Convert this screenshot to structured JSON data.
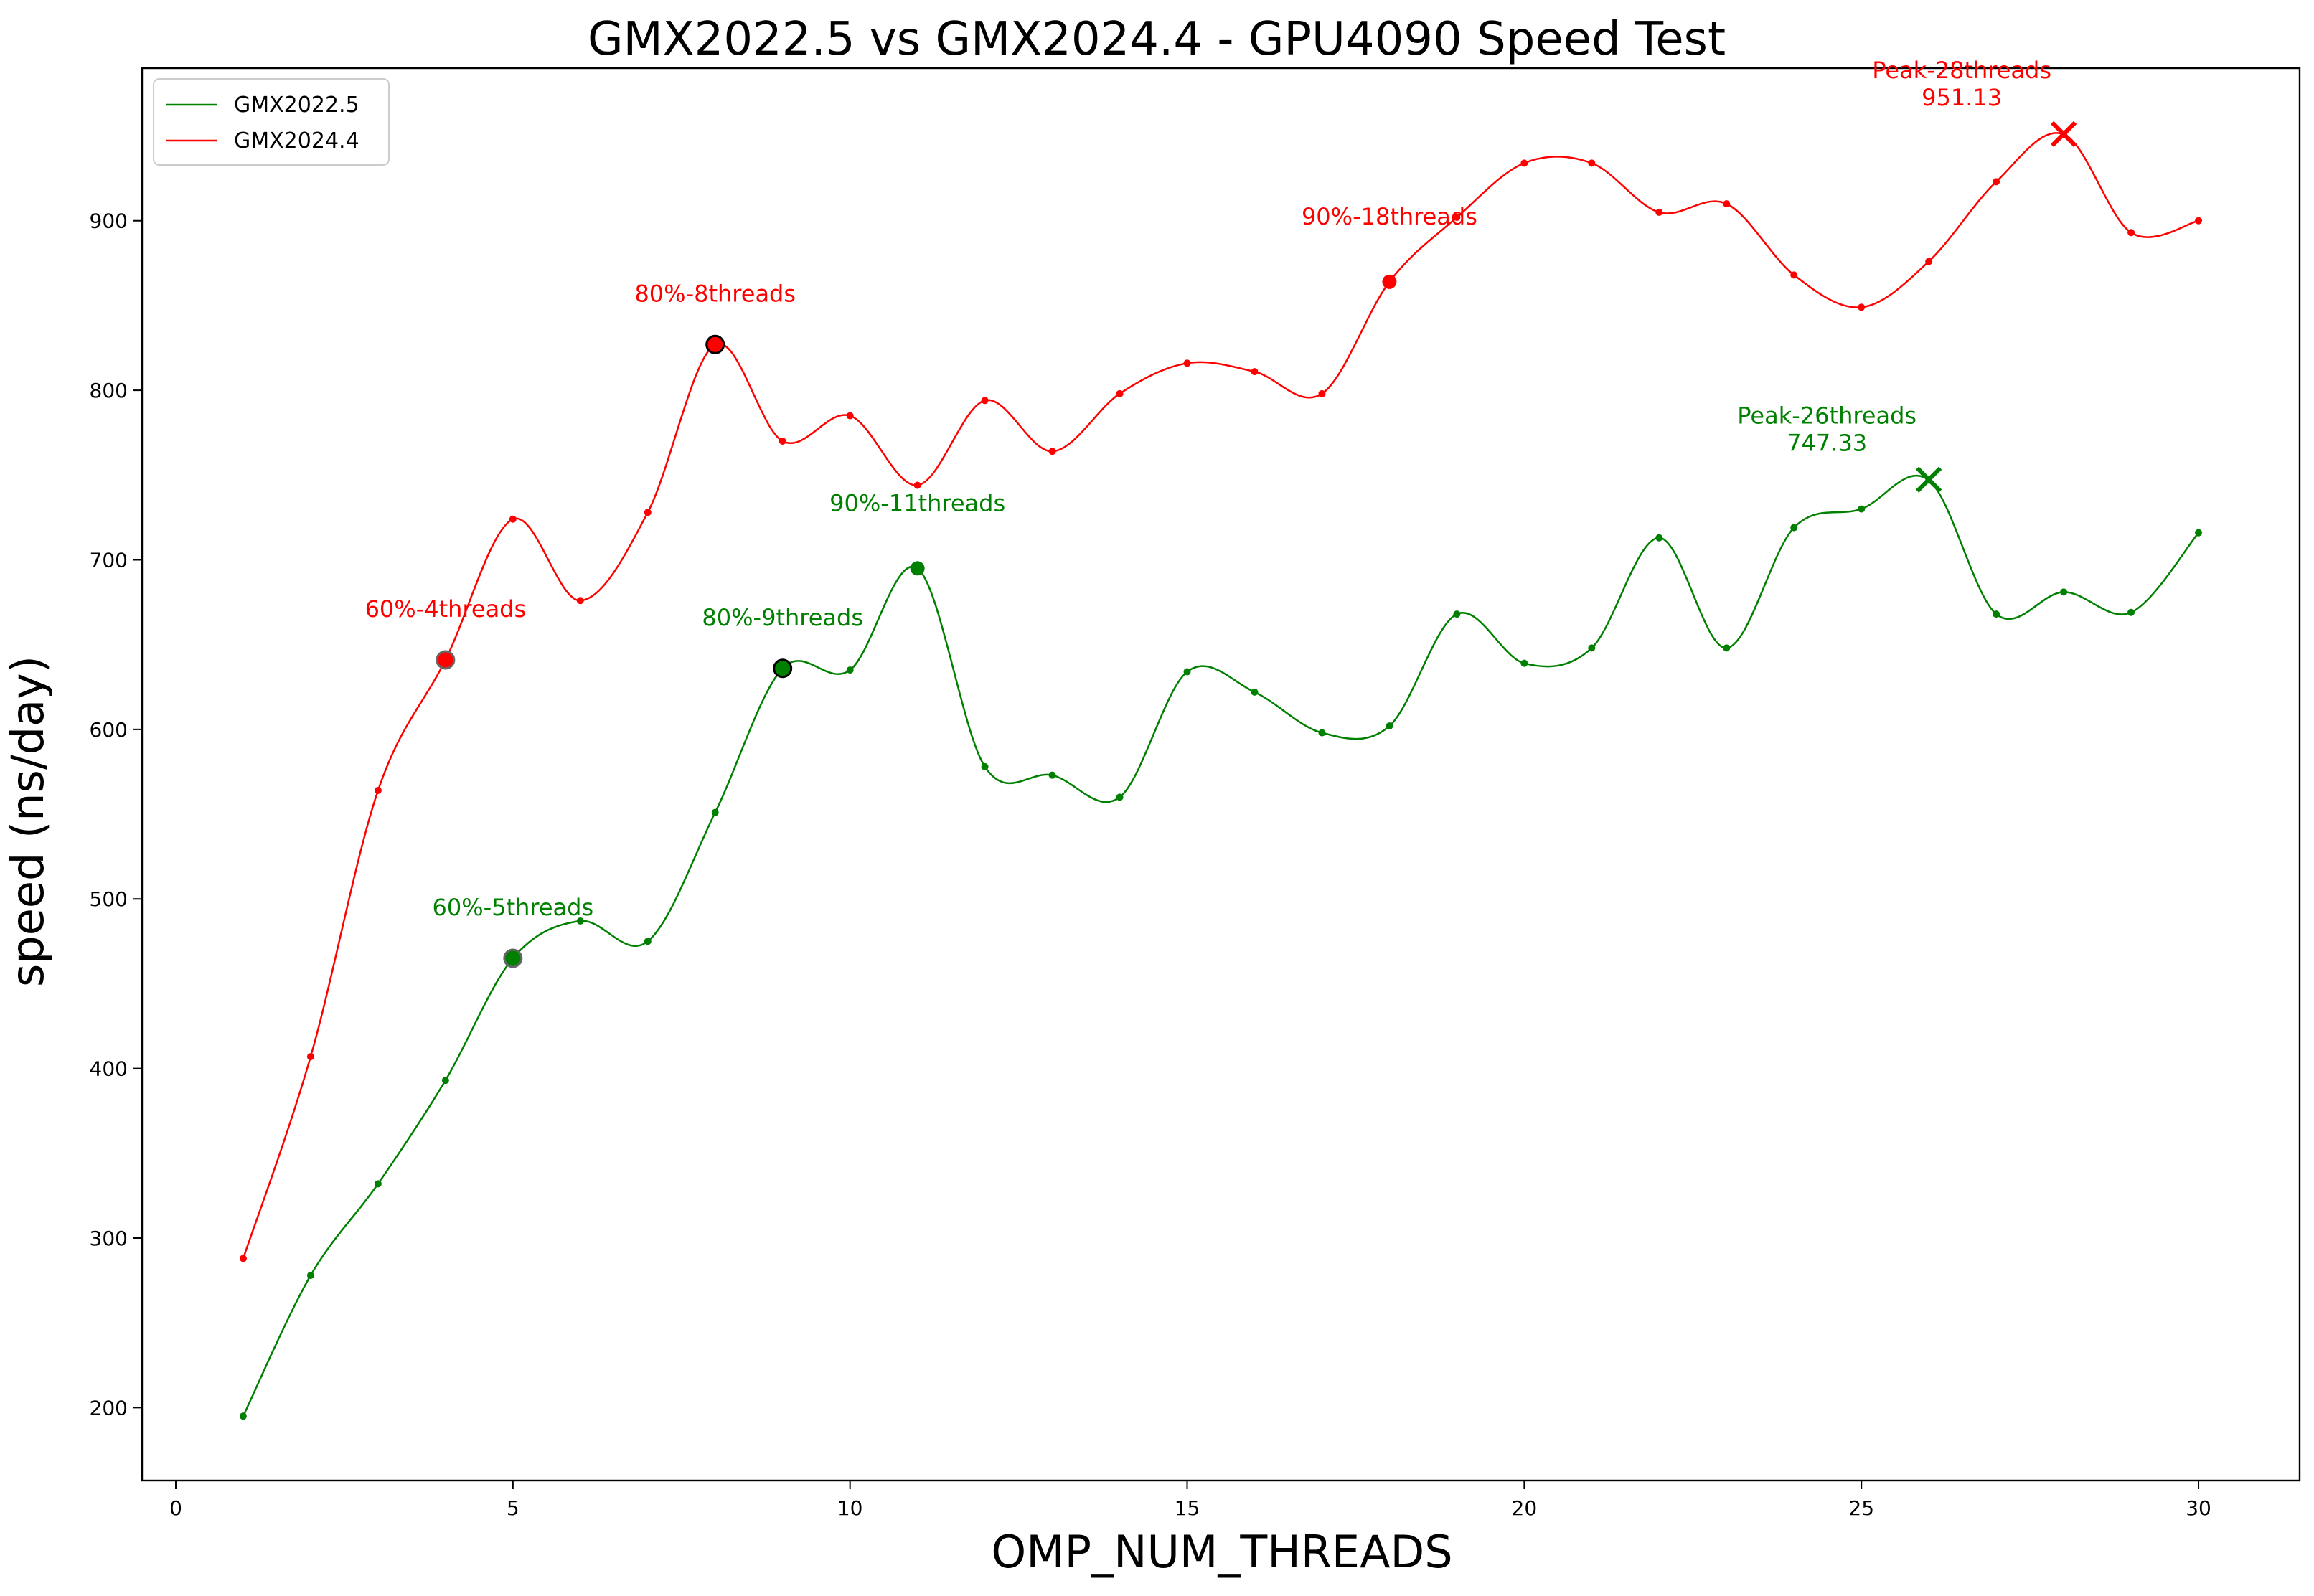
{
  "chart_data": {
    "type": "line",
    "title": "GMX2022.5 vs GMX2024.4 - GPU4090 Speed Test",
    "xlabel": "OMP_NUM_THREADS",
    "ylabel": "speed (ns/day)",
    "xlim": [
      -0.5,
      31.5
    ],
    "ylim": [
      157,
      990
    ],
    "xticks": [
      0,
      5,
      10,
      15,
      20,
      25,
      30
    ],
    "yticks": [
      200,
      300,
      400,
      500,
      600,
      700,
      800,
      900
    ],
    "grid": false,
    "legend_position": "top-left",
    "x": [
      1,
      2,
      3,
      4,
      5,
      6,
      7,
      8,
      9,
      10,
      11,
      12,
      13,
      14,
      15,
      16,
      17,
      18,
      19,
      20,
      21,
      22,
      23,
      24,
      25,
      26,
      27,
      28,
      29,
      30
    ],
    "series": [
      {
        "name": "GMX2022.5",
        "color": "#008000",
        "values": [
          195,
          278,
          332,
          393,
          465,
          487,
          475,
          551,
          636,
          635,
          695,
          578,
          573,
          560,
          634,
          622,
          598,
          602,
          668,
          639,
          648,
          713,
          648,
          719,
          730,
          747,
          668,
          681,
          669,
          716
        ]
      },
      {
        "name": "GMX2024.4",
        "color": "#ff0000",
        "values": [
          288,
          407,
          564,
          641,
          724,
          676,
          728,
          827,
          770,
          785,
          744,
          794,
          764,
          798,
          816,
          811,
          798,
          864,
          902,
          934,
          934,
          905,
          910,
          868,
          849,
          876,
          923,
          951,
          893,
          900
        ]
      }
    ],
    "annotations": [
      {
        "series": 0,
        "text": "60%-5threads",
        "x": 5,
        "y": 465,
        "marker": "ring"
      },
      {
        "series": 0,
        "text": "80%-9threads",
        "x": 9,
        "y": 636,
        "marker": "outlined"
      },
      {
        "series": 0,
        "text": "90%-11threads",
        "x": 11,
        "y": 695,
        "marker": "dot"
      },
      {
        "series": 0,
        "text": "Peak-26threads",
        "value_text": "747.33",
        "x": 26,
        "y": 747.33,
        "marker": "cross"
      },
      {
        "series": 1,
        "text": "60%-4threads",
        "x": 4,
        "y": 641,
        "marker": "ring"
      },
      {
        "series": 1,
        "text": "80%-8threads",
        "x": 8,
        "y": 827,
        "marker": "outlined"
      },
      {
        "series": 1,
        "text": "90%-18threads",
        "x": 18,
        "y": 864,
        "marker": "dot"
      },
      {
        "series": 1,
        "text": "Peak-28threads",
        "value_text": "951.13",
        "x": 28,
        "y": 951.13,
        "marker": "cross"
      }
    ]
  }
}
